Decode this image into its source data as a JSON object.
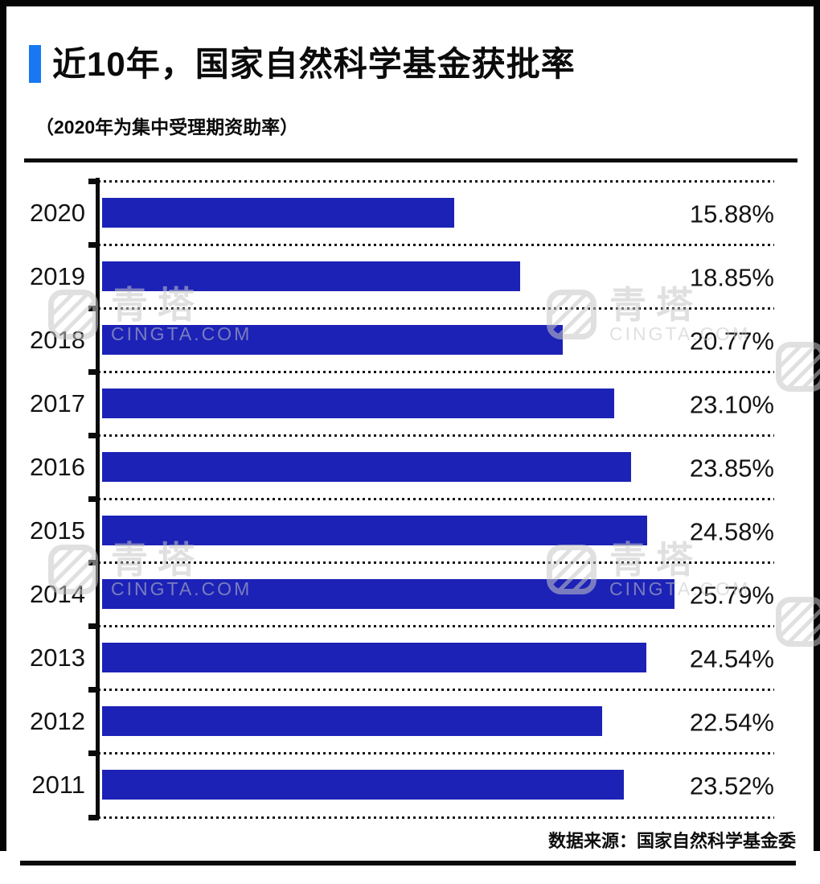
{
  "header": {
    "title": "近10年，国家自然科学基金获批率",
    "subtitle": "（2020年为集中受理期资助率）"
  },
  "footer": {
    "source": "数据来源：国家自然科学基金委"
  },
  "watermark": {
    "brand": "青塔",
    "domain": "CINGTA.COM"
  },
  "colors": {
    "accent": "#1778f2",
    "bar": "#1c22b6",
    "frame": "#050505",
    "text": "#131313",
    "watermark": "#c7c7c7"
  },
  "chart_data": {
    "type": "bar",
    "orientation": "horizontal",
    "title": "近10年，国家自然科学基金获批率",
    "subtitle": "（2020年为集中受理期资助率）",
    "categories": [
      "2020",
      "2019",
      "2018",
      "2017",
      "2016",
      "2015",
      "2014",
      "2013",
      "2012",
      "2011"
    ],
    "values": [
      15.88,
      18.85,
      20.77,
      23.1,
      23.85,
      24.58,
      25.79,
      24.54,
      22.54,
      23.52
    ],
    "value_labels": [
      "15.88%",
      "18.85%",
      "20.77%",
      "23.10%",
      "23.85%",
      "24.58%",
      "25.79%",
      "24.54%",
      "22.54%",
      "23.52%"
    ],
    "xlabel": "",
    "ylabel": "",
    "xlim": [
      0,
      30.3
    ],
    "grid": "dotted row separators with axis ticks",
    "legend": "none",
    "bar_color": "#1c22b6",
    "source": "数据来源：国家自然科学基金委"
  }
}
